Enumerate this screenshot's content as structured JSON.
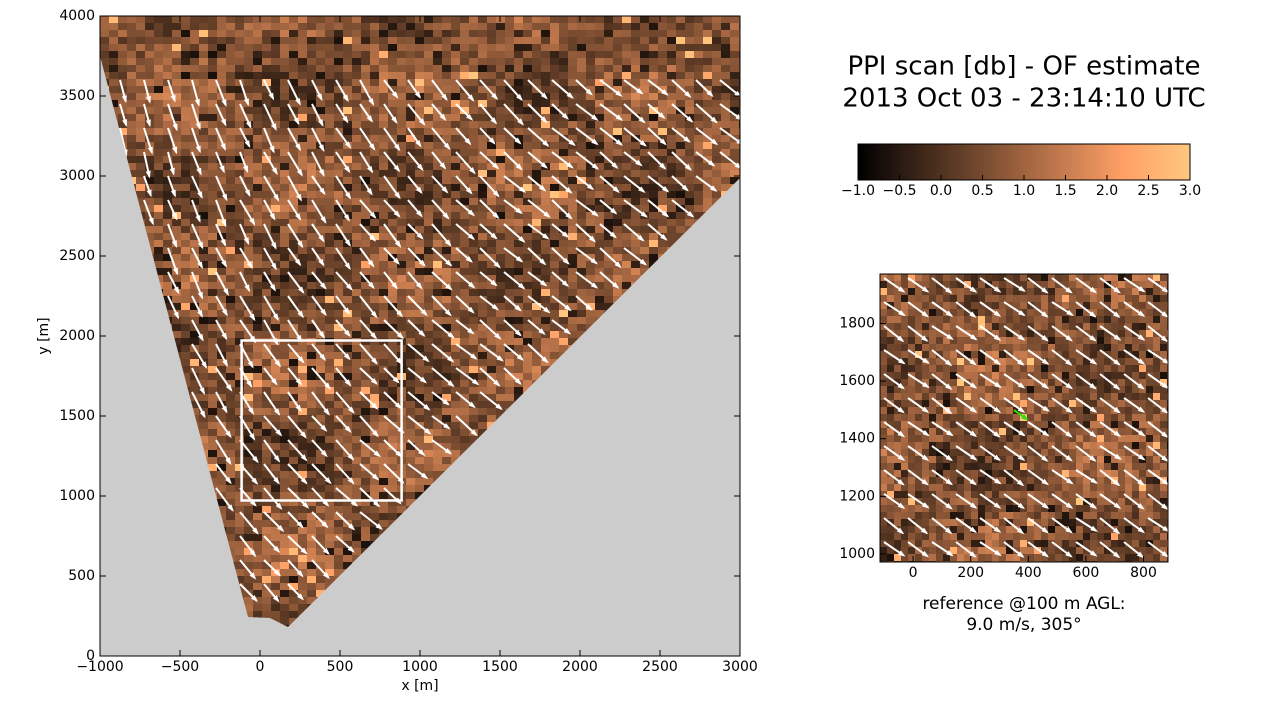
{
  "chart_data": [
    {
      "type": "heatmap",
      "xlabel": "x [m]",
      "ylabel": "y [m]",
      "xlim": [
        -1000,
        3000
      ],
      "ylim": [
        0,
        4000
      ],
      "xticks": [
        {
          "value": -1000,
          "label": "−1000"
        },
        {
          "value": -500,
          "label": "−500"
        },
        0,
        500,
        1000,
        1500,
        2000,
        2500,
        3000
      ],
      "yticks": [
        0,
        500,
        1000,
        1500,
        2000,
        2500,
        3000,
        3500,
        4000
      ]
    },
    {
      "type": "colorbar",
      "title": [
        "PPI scan [db] - OF estimate",
        "2013 Oct 03 - 23:14:10 UTC"
      ],
      "lim": [
        -1,
        3
      ],
      "ticks": [
        {
          "value": -1,
          "label": "−1.0"
        },
        {
          "value": -0.5,
          "label": "−0.5"
        },
        {
          "value": 0,
          "label": "0.0"
        },
        {
          "value": 0.5,
          "label": "0.5"
        },
        {
          "value": 1,
          "label": "1.0"
        },
        {
          "value": 1.5,
          "label": "1.5"
        },
        {
          "value": 2,
          "label": "2.0"
        },
        {
          "value": 2.5,
          "label": "2.5"
        },
        {
          "value": 3,
          "label": "3.0"
        }
      ]
    },
    {
      "type": "inset",
      "xlim": [
        -115,
        885
      ],
      "ylim": [
        972,
        1972
      ],
      "xticks": [
        0,
        200,
        400,
        600,
        800
      ],
      "yticks": [
        1000,
        1200,
        1400,
        1600,
        1800
      ],
      "caption": [
        "reference @100 m AGL:",
        "9.0 m/s,  305°"
      ]
    }
  ]
}
